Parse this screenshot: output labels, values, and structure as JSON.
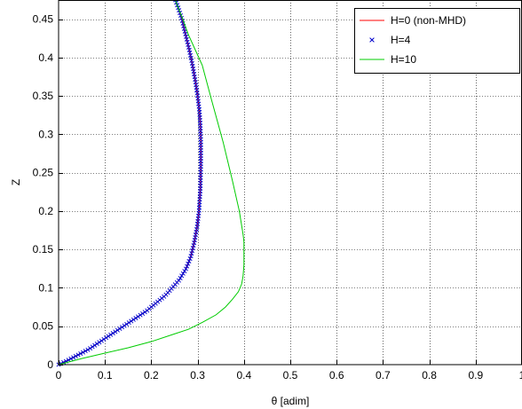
{
  "chart_data": {
    "type": "line",
    "title": "",
    "xlabel": "θ  [adim]",
    "ylabel": "Z",
    "xlim": [
      0,
      1
    ],
    "ylim": [
      0,
      0.475
    ],
    "xticks": [
      "0",
      "0.1",
      "0.2",
      "0.3",
      "0.4",
      "0.5",
      "0.6",
      "0.7",
      "0.8",
      "0.9",
      "1"
    ],
    "yticks": [
      "0",
      "0.05",
      "0.1",
      "0.15",
      "0.2",
      "0.25",
      "0.3",
      "0.35",
      "0.4",
      "0.45"
    ],
    "grid": true,
    "legend_position": "top-right",
    "series": [
      {
        "name": "H=0  (non-MHD)",
        "color": "#ff0000",
        "style": "line",
        "x": [
          0,
          0.018,
          0.04,
          0.065,
          0.09,
          0.115,
          0.14,
          0.165,
          0.19,
          0.21,
          0.23,
          0.245,
          0.26,
          0.275,
          0.285,
          0.293,
          0.299,
          0.303,
          0.306,
          0.307,
          0.307,
          0.306,
          0.304,
          0.3,
          0.295,
          0.289,
          0.282,
          0.274,
          0.266,
          0.258,
          0.252
        ],
        "y": [
          0,
          0.005,
          0.012,
          0.02,
          0.03,
          0.04,
          0.05,
          0.06,
          0.07,
          0.08,
          0.09,
          0.1,
          0.11,
          0.125,
          0.14,
          0.16,
          0.18,
          0.2,
          0.23,
          0.26,
          0.29,
          0.31,
          0.33,
          0.35,
          0.37,
          0.39,
          0.41,
          0.43,
          0.45,
          0.465,
          0.475
        ]
      },
      {
        "name": "H=4",
        "color": "#0000cc",
        "style": "markers-x",
        "x": [
          0,
          0.018,
          0.04,
          0.065,
          0.09,
          0.115,
          0.14,
          0.165,
          0.19,
          0.21,
          0.23,
          0.245,
          0.26,
          0.275,
          0.285,
          0.293,
          0.299,
          0.303,
          0.306,
          0.307,
          0.307,
          0.306,
          0.304,
          0.3,
          0.295,
          0.289,
          0.282,
          0.274,
          0.266,
          0.258,
          0.252
        ],
        "y": [
          0,
          0.005,
          0.012,
          0.02,
          0.03,
          0.04,
          0.05,
          0.06,
          0.07,
          0.08,
          0.09,
          0.1,
          0.11,
          0.125,
          0.14,
          0.16,
          0.18,
          0.2,
          0.23,
          0.26,
          0.29,
          0.31,
          0.33,
          0.35,
          0.37,
          0.39,
          0.41,
          0.43,
          0.45,
          0.465,
          0.475
        ],
        "marker_density": 160
      },
      {
        "name": "H=10",
        "color": "#00cc00",
        "style": "line",
        "x": [
          0,
          0.05,
          0.1,
          0.15,
          0.2,
          0.25,
          0.28,
          0.31,
          0.34,
          0.36,
          0.375,
          0.388,
          0.395,
          0.398,
          0.4,
          0.4,
          0.398,
          0.39,
          0.375,
          0.355,
          0.33,
          0.31,
          0.295,
          0.28,
          0.268,
          0.258,
          0.252
        ],
        "y": [
          0,
          0.008,
          0.015,
          0.022,
          0.03,
          0.04,
          0.046,
          0.055,
          0.065,
          0.075,
          0.085,
          0.095,
          0.105,
          0.115,
          0.13,
          0.16,
          0.17,
          0.2,
          0.24,
          0.29,
          0.345,
          0.39,
          0.41,
          0.43,
          0.45,
          0.465,
          0.475
        ]
      }
    ]
  },
  "colors": {
    "axis": "#000000",
    "grid": "#000000",
    "background": "#ffffff"
  }
}
